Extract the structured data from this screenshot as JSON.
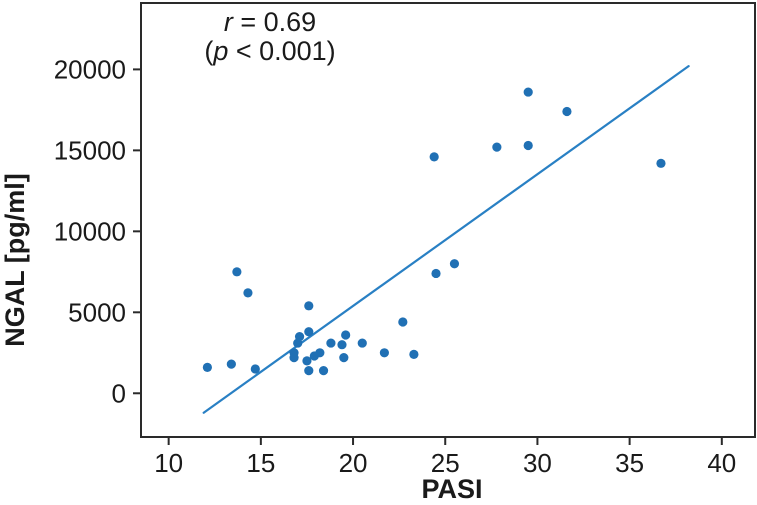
{
  "chart_data": {
    "type": "scatter",
    "title": "",
    "xlabel": "PASI",
    "ylabel": "NGAL [pg/ml]",
    "annotation": {
      "lines": [
        {
          "prefix": "",
          "italic": "r",
          "rest": " = 0.69"
        },
        {
          "prefix": "(",
          "italic": "p",
          "rest": " < 0.001)"
        }
      ]
    },
    "x_ticks": [
      10,
      15,
      20,
      25,
      30,
      35,
      40
    ],
    "y_ticks": [
      0,
      5000,
      10000,
      15000,
      20000
    ],
    "xlim": [
      8.5,
      41.8
    ],
    "ylim": [
      -2700,
      24100
    ],
    "grid": false,
    "legend": "none",
    "points": [
      {
        "pasi": 12.1,
        "ngal": 1600
      },
      {
        "pasi": 13.4,
        "ngal": 1800
      },
      {
        "pasi": 13.7,
        "ngal": 7500
      },
      {
        "pasi": 14.3,
        "ngal": 6200
      },
      {
        "pasi": 14.7,
        "ngal": 1500
      },
      {
        "pasi": 16.8,
        "ngal": 2500
      },
      {
        "pasi": 16.8,
        "ngal": 2200
      },
      {
        "pasi": 17.0,
        "ngal": 3100
      },
      {
        "pasi": 17.1,
        "ngal": 3500
      },
      {
        "pasi": 17.5,
        "ngal": 2000
      },
      {
        "pasi": 17.6,
        "ngal": 5400
      },
      {
        "pasi": 17.6,
        "ngal": 3800
      },
      {
        "pasi": 17.6,
        "ngal": 1400
      },
      {
        "pasi": 17.9,
        "ngal": 2300
      },
      {
        "pasi": 18.2,
        "ngal": 2500
      },
      {
        "pasi": 18.4,
        "ngal": 1400
      },
      {
        "pasi": 18.8,
        "ngal": 3100
      },
      {
        "pasi": 19.4,
        "ngal": 3000
      },
      {
        "pasi": 19.5,
        "ngal": 2200
      },
      {
        "pasi": 19.6,
        "ngal": 3600
      },
      {
        "pasi": 20.5,
        "ngal": 3100
      },
      {
        "pasi": 21.7,
        "ngal": 2500
      },
      {
        "pasi": 22.7,
        "ngal": 4400
      },
      {
        "pasi": 23.3,
        "ngal": 2400
      },
      {
        "pasi": 24.4,
        "ngal": 14600
      },
      {
        "pasi": 24.5,
        "ngal": 7400
      },
      {
        "pasi": 25.5,
        "ngal": 8000
      },
      {
        "pasi": 27.8,
        "ngal": 15200
      },
      {
        "pasi": 29.5,
        "ngal": 18600
      },
      {
        "pasi": 29.5,
        "ngal": 15300
      },
      {
        "pasi": 31.6,
        "ngal": 17400
      },
      {
        "pasi": 36.7,
        "ngal": 14200
      }
    ],
    "trend_line": {
      "x1": 11.9,
      "y1": -1200,
      "x2": 38.2,
      "y2": 20200
    },
    "colors": {
      "points": "#2070b4",
      "line": "#2980c4",
      "axis": "#2a2a2a",
      "text": "#1a1a1a",
      "background": "#ffffff"
    }
  }
}
